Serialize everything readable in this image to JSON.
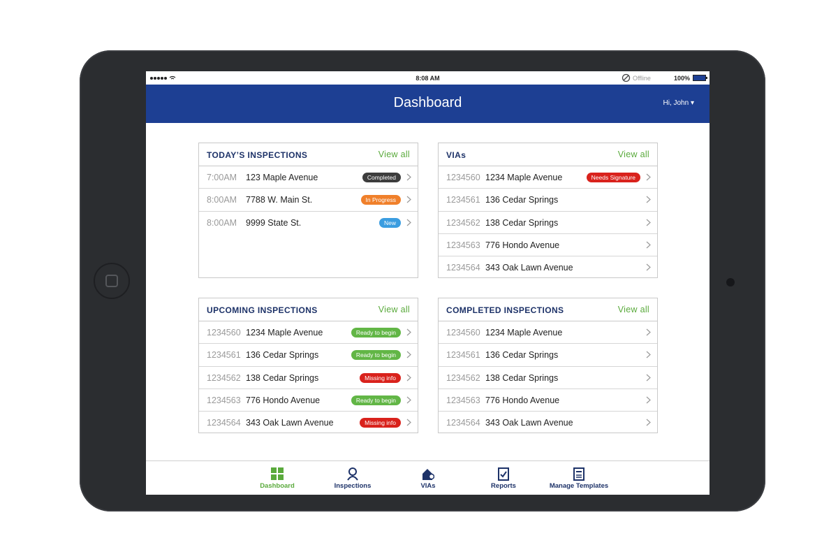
{
  "status_bar": {
    "time": "8:08 AM",
    "network": "Offline",
    "battery": "100%"
  },
  "header": {
    "title": "Dashboard",
    "user": "Hi, John"
  },
  "panels": [
    {
      "title": "TODAY’S INSPECTIONS",
      "action": "View all",
      "rows": [
        {
          "id": "7:00AM",
          "address": "123 Maple Avenue",
          "badge": {
            "label": "Completed",
            "color": "#3d3d3d"
          }
        },
        {
          "id": "8:00AM",
          "address": "7788 W. Main St.",
          "badge": {
            "label": "In Progress",
            "color": "#f0802b"
          }
        },
        {
          "id": "8:00AM",
          "address": "9999 State St.",
          "badge": {
            "label": "New",
            "color": "#3b9de0"
          }
        }
      ]
    },
    {
      "title": "VIAs",
      "action": "View all",
      "rows": [
        {
          "id": "1234560",
          "address": "1234 Maple Avenue",
          "badge": {
            "label": "Needs Signature",
            "color": "#d9221c"
          }
        },
        {
          "id": "1234561",
          "address": "136 Cedar Springs"
        },
        {
          "id": "1234562",
          "address": "138 Cedar Springs"
        },
        {
          "id": "1234563",
          "address": "776 Hondo Avenue"
        },
        {
          "id": "1234564",
          "address": "343 Oak Lawn Avenue"
        }
      ]
    },
    {
      "title": "UPCOMING INSPECTIONS",
      "action": "View all",
      "rows": [
        {
          "id": "1234560",
          "address": "1234 Maple Avenue",
          "badge": {
            "label": "Ready to begin",
            "color": "#62b646"
          }
        },
        {
          "id": "1234561",
          "address": "136 Cedar Springs",
          "badge": {
            "label": "Ready to begin",
            "color": "#62b646"
          }
        },
        {
          "id": "1234562",
          "address": "138 Cedar Springs",
          "badge": {
            "label": "Missing info",
            "color": "#d9221c"
          }
        },
        {
          "id": "1234563",
          "address": "776 Hondo Avenue",
          "badge": {
            "label": "Ready to begin",
            "color": "#62b646"
          }
        },
        {
          "id": "1234564",
          "address": "343 Oak Lawn Avenue",
          "badge": {
            "label": "Missing info",
            "color": "#d9221c"
          }
        }
      ]
    },
    {
      "title": "COMPLETED INSPECTIONS",
      "action": "View all",
      "rows": [
        {
          "id": "1234560",
          "address": "1234 Maple Avenue"
        },
        {
          "id": "1234561",
          "address": "136 Cedar Springs"
        },
        {
          "id": "1234562",
          "address": "138 Cedar Springs"
        },
        {
          "id": "1234563",
          "address": "776 Hondo Avenue"
        },
        {
          "id": "1234564",
          "address": "343 Oak Lawn Avenue"
        }
      ]
    }
  ],
  "tabs": [
    {
      "label": "Dashboard",
      "active": true
    },
    {
      "label": "Inspections"
    },
    {
      "label": "VIAs"
    },
    {
      "label": "Reports"
    },
    {
      "label": "Manage Templates"
    }
  ]
}
